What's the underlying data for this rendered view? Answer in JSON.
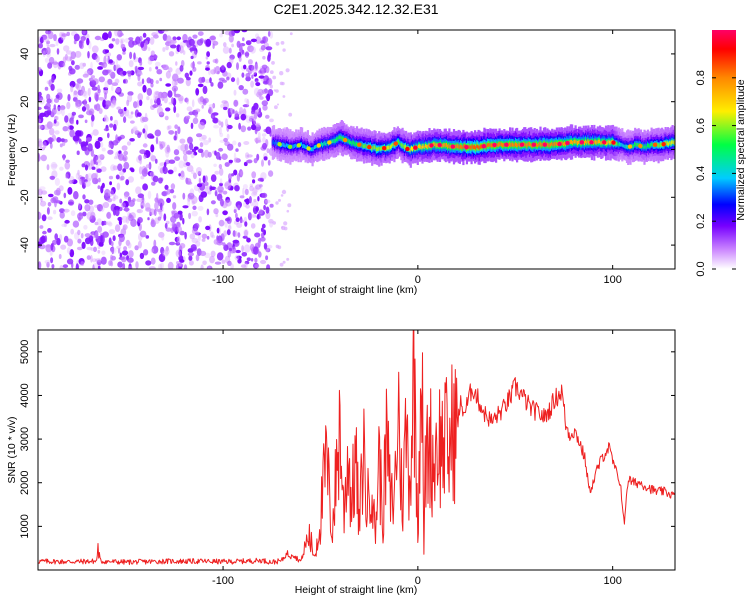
{
  "figure_title": "C2E1.2025.342.12.32.E31",
  "chart_data": [
    {
      "type": "heatmap",
      "xlabel": "Height of straight line (km)",
      "ylabel": "Frequency (Hz)",
      "xlim": [
        -195,
        132
      ],
      "ylim": [
        -50,
        50
      ],
      "x_ticks": [
        -100,
        0,
        100
      ],
      "y_ticks": [
        -40,
        -20,
        0,
        20,
        40
      ],
      "colorbar_label": "Normalized spectral amplitude",
      "colorbar_ticks": [
        "0.0",
        "0.2",
        "0.4",
        "0.6",
        "0.8"
      ],
      "colorbar_range": [
        0,
        1
      ],
      "colormap": [
        "#ffffff",
        "#cc88ff",
        "#7700ff",
        "#0000ff",
        "#00ccff",
        "#00ff44",
        "#ffee00",
        "#ff8800",
        "#ff0000",
        "#ff0066"
      ],
      "noise_region_x": [
        -195,
        -75
      ],
      "signal_start_x": -75,
      "ridge": {
        "x": [
          -75,
          -70,
          -65,
          -60,
          -55,
          -50,
          -45,
          -40,
          -35,
          -30,
          -25,
          -20,
          -15,
          -10,
          -5,
          0,
          10,
          20,
          30,
          40,
          50,
          60,
          70,
          80,
          90,
          100,
          104,
          108,
          112,
          116,
          120,
          125,
          130
        ],
        "y": [
          3,
          2,
          1,
          2,
          0,
          2,
          3,
          5,
          3,
          2,
          1,
          0,
          1,
          3,
          0,
          1,
          2,
          1,
          1,
          2,
          2,
          2,
          2,
          3,
          3,
          3,
          2,
          1,
          2,
          1,
          2,
          2,
          3
        ],
        "peak_amplitude": [
          0.45,
          0.55,
          0.5,
          0.55,
          0.55,
          0.6,
          0.6,
          0.7,
          0.65,
          0.7,
          0.75,
          0.75,
          0.8,
          0.7,
          0.8,
          0.85,
          0.9,
          0.95,
          1.0,
          0.95,
          0.95,
          0.95,
          0.95,
          0.9,
          0.9,
          0.85,
          0.55,
          0.6,
          0.7,
          0.65,
          0.7,
          0.75,
          0.8
        ]
      }
    },
    {
      "type": "line",
      "xlabel": "Height of straight line (km)",
      "ylabel": "SNR (10 * v/v)",
      "xlim": [
        -195,
        132
      ],
      "ylim": [
        0,
        5500
      ],
      "x_ticks": [
        -100,
        0,
        100
      ],
      "y_ticks": [
        1000,
        2000,
        3000,
        4000,
        5000
      ],
      "line_color": "#ee2020",
      "series": [
        {
          "x": [
            -195,
            -180,
            -165,
            -164,
            -163,
            -150,
            -130,
            -110,
            -100,
            -90,
            -80,
            -75,
            -70,
            -66,
            -63,
            -60,
            -56,
            -53,
            -50,
            -47,
            -44,
            -42,
            -40,
            -38,
            -36,
            -34,
            -32,
            -30,
            -28,
            -26,
            -24,
            -22,
            -20,
            -18,
            -16,
            -14,
            -12,
            -10,
            -8,
            -6,
            -4,
            -2,
            0,
            2,
            3,
            4,
            6,
            8,
            10,
            12,
            14,
            16,
            18,
            20,
            22,
            24,
            26,
            28,
            30,
            32,
            34,
            36,
            38,
            40,
            44,
            48,
            50,
            52,
            55,
            58,
            62,
            65,
            68,
            70,
            72,
            74,
            76,
            78,
            80,
            82,
            84,
            86,
            88,
            90,
            92,
            94,
            96,
            98,
            100,
            102,
            104,
            105,
            106,
            107,
            108,
            110,
            114,
            118,
            122,
            126,
            132
          ],
          "y": [
            200,
            190,
            200,
            520,
            200,
            180,
            200,
            200,
            190,
            200,
            220,
            180,
            210,
            450,
            300,
            200,
            800,
            300,
            1200,
            2500,
            900,
            2100,
            3400,
            1200,
            2800,
            1500,
            2600,
            900,
            2900,
            1300,
            2500,
            700,
            2600,
            1200,
            3000,
            1500,
            1700,
            3800,
            1400,
            3300,
            2000,
            4800,
            1100,
            5450,
            300,
            2500,
            3000,
            2400,
            3100,
            2800,
            3000,
            2700,
            3300,
            3300,
            3800,
            3600,
            3900,
            4200,
            4000,
            3800,
            3600,
            3500,
            3400,
            3500,
            3700,
            4000,
            4200,
            4100,
            3900,
            3700,
            3600,
            3500,
            3700,
            3900,
            4000,
            4100,
            3300,
            3100,
            3200,
            3050,
            2800,
            2500,
            1800,
            2000,
            2300,
            2500,
            2700,
            2800,
            2500,
            2200,
            2000,
            1500,
            1000,
            1700,
            2100,
            2000,
            2000,
            1900,
            1800,
            1800,
            1700
          ]
        }
      ]
    }
  ]
}
